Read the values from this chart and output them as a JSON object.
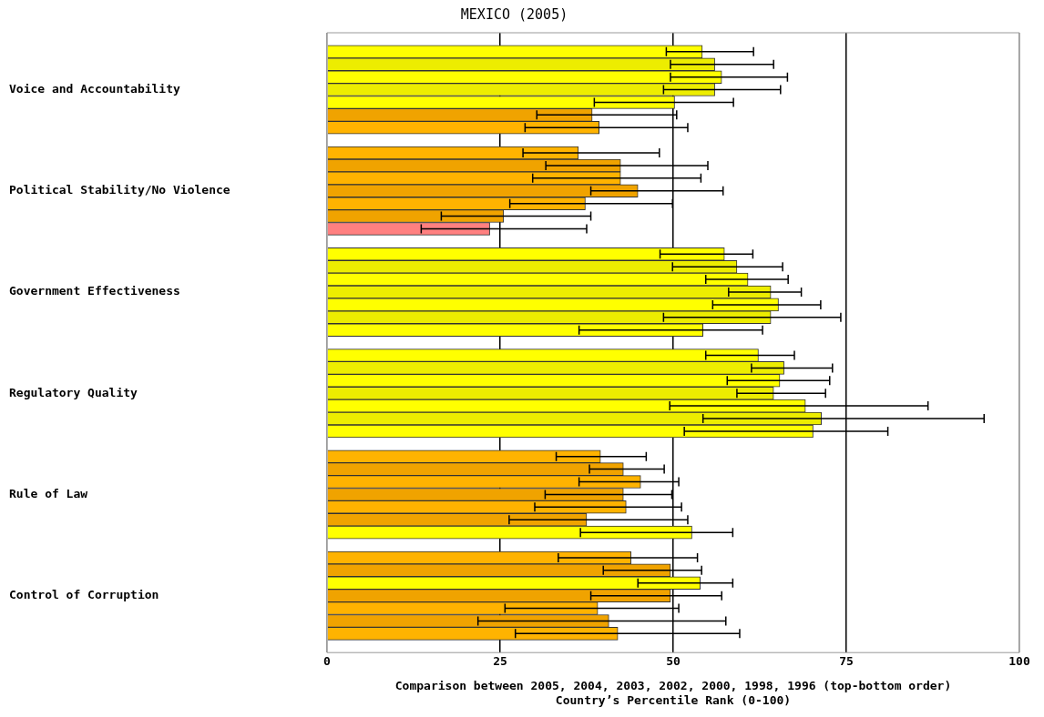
{
  "chart_data": {
    "type": "bar",
    "orientation": "horizontal",
    "title": "MEXICO (2005)",
    "xlabel": "Comparison between 2005, 2004, 2003, 2002, 2000, 1998, 1996 (top-bottom order)\nCountry’s Percentile Rank (0-100)",
    "categories": [
      null,
      null,
      null,
      null,
      "Voice and Accountability",
      null,
      null,
      null,
      null,
      null,
      null,
      null,
      "Political Stability/No Violence",
      null,
      null,
      null,
      null,
      null,
      null,
      null,
      "Government Effectiveness",
      null,
      null,
      null,
      null,
      null,
      null,
      null,
      "Regulatory Quality",
      null,
      null,
      null,
      null,
      null,
      null,
      null,
      "Rule of Law",
      null,
      null,
      null,
      null,
      null,
      null,
      null,
      "Control of Corruption",
      null,
      null,
      null,
      null
    ],
    "values": [
      null,
      54.2,
      56.0,
      57.0,
      56.0,
      50.2,
      38.3,
      39.3,
      null,
      36.3,
      42.4,
      42.4,
      44.9,
      37.3,
      25.5,
      23.5,
      null,
      57.4,
      59.2,
      60.8,
      64.1,
      65.2,
      64.1,
      54.3,
      null,
      62.3,
      66.0,
      65.4,
      64.5,
      69.1,
      71.4,
      70.2,
      null,
      39.5,
      42.8,
      45.3,
      42.8,
      43.2,
      37.5,
      52.7,
      null,
      43.9,
      49.6,
      53.9,
      49.6,
      39.1,
      40.7,
      42.0,
      null
    ],
    "errors": [
      null,
      [
        49.0,
        61.6
      ],
      [
        49.6,
        64.5
      ],
      [
        49.6,
        66.5
      ],
      [
        48.6,
        65.5
      ],
      [
        38.6,
        58.7
      ],
      [
        30.3,
        50.5
      ],
      [
        28.6,
        52.1
      ],
      null,
      [
        28.3,
        48.0
      ],
      [
        31.6,
        55.0
      ],
      [
        29.7,
        54.0
      ],
      [
        38.1,
        57.2
      ],
      [
        26.4,
        49.9
      ],
      [
        16.5,
        38.1
      ],
      [
        13.6,
        37.5
      ],
      null,
      [
        48.1,
        61.5
      ],
      [
        49.9,
        65.8
      ],
      [
        54.7,
        66.6
      ],
      [
        58.0,
        68.5
      ],
      [
        55.7,
        71.3
      ],
      [
        48.6,
        74.2
      ],
      [
        36.4,
        62.9
      ],
      null,
      [
        54.7,
        67.5
      ],
      [
        61.3,
        73.0
      ],
      [
        57.8,
        72.6
      ],
      [
        59.2,
        72.0
      ],
      [
        49.5,
        86.8
      ],
      [
        54.3,
        94.9
      ],
      [
        51.6,
        81.0
      ],
      null,
      [
        33.1,
        46.1
      ],
      [
        37.9,
        48.7
      ],
      [
        36.4,
        50.8
      ],
      [
        31.5,
        49.8
      ],
      [
        30.0,
        51.2
      ],
      [
        26.3,
        52.1
      ],
      [
        36.6,
        58.6
      ],
      null,
      [
        33.4,
        53.5
      ],
      [
        39.9,
        54.1
      ],
      [
        44.9,
        58.6
      ],
      [
        38.1,
        57.0
      ],
      [
        25.7,
        50.8
      ],
      [
        21.8,
        57.6
      ],
      [
        27.2,
        59.6
      ],
      null
    ],
    "colors": [
      null,
      "#ffff00",
      "#eded00",
      "#ffff00",
      "#eded00",
      "#ffff00",
      "#f0a300",
      "#ffb300",
      null,
      "#ffb300",
      "#f0a300",
      "#ffb300",
      "#f0a300",
      "#ffb300",
      "#f0a300",
      "#ff8080",
      null,
      "#ffff00",
      "#eded00",
      "#ffff00",
      "#eded00",
      "#ffff00",
      "#eded00",
      "#ffff00",
      null,
      "#ffff00",
      "#eded00",
      "#ffff00",
      "#eded00",
      "#ffff00",
      "#eded00",
      "#ffff00",
      null,
      "#ffb300",
      "#f0a300",
      "#ffb300",
      "#f0a300",
      "#ffb300",
      "#f0a300",
      "#ffff00",
      null,
      "#ffb300",
      "#f0a300",
      "#ffff00",
      "#f0a300",
      "#ffb300",
      "#f0a300",
      "#ffb300",
      null
    ],
    "xlim": [
      0,
      100
    ],
    "xticks": [
      0,
      25,
      50,
      75,
      100
    ],
    "grid": "x",
    "legend": false
  }
}
